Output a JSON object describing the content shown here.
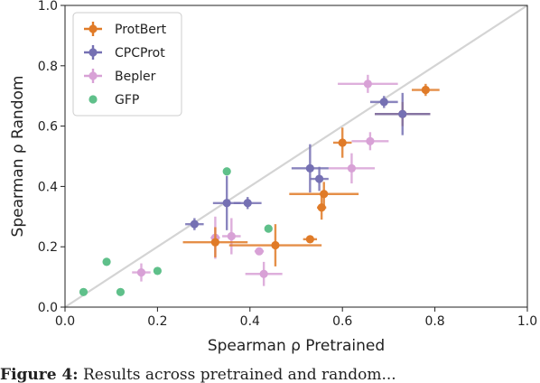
{
  "chart_data": {
    "type": "scatter",
    "xlabel": "Spearman ρ Pretrained",
    "ylabel": "Spearman ρ Random",
    "xlim": [
      0.0,
      1.0
    ],
    "ylim": [
      0.0,
      1.0
    ],
    "xticks": [
      0.0,
      0.2,
      0.4,
      0.6,
      0.8,
      1.0
    ],
    "yticks": [
      0.0,
      0.2,
      0.4,
      0.6,
      0.8,
      1.0
    ],
    "tick_format": "0.0",
    "grid": false,
    "diagonal_reference_line": true,
    "legend_position": "upper-left",
    "series": [
      {
        "name": "ProtBert",
        "color": "#e07b28",
        "marker": "circle-with-errorbars",
        "points": [
          {
            "x": 0.78,
            "y": 0.72,
            "xerr": 0.03,
            "yerr": 0.02
          },
          {
            "x": 0.73,
            "y": 0.64,
            "xerr": 0.06,
            "yerr": 0.04
          },
          {
            "x": 0.6,
            "y": 0.545,
            "xerr": 0.02,
            "yerr": 0.05
          },
          {
            "x": 0.56,
            "y": 0.375,
            "xerr": 0.075,
            "yerr": 0.04
          },
          {
            "x": 0.555,
            "y": 0.33,
            "xerr": 0.01,
            "yerr": 0.04
          },
          {
            "x": 0.53,
            "y": 0.225,
            "xerr": 0.015,
            "yerr": 0.01
          },
          {
            "x": 0.455,
            "y": 0.205,
            "xerr": 0.1,
            "yerr": 0.07
          },
          {
            "x": 0.325,
            "y": 0.215,
            "xerr": 0.07,
            "yerr": 0.05
          }
        ]
      },
      {
        "name": "CPCProt",
        "color": "#7570b3",
        "marker": "circle-with-errorbars",
        "points": [
          {
            "x": 0.73,
            "y": 0.64,
            "xerr": 0.06,
            "yerr": 0.07
          },
          {
            "x": 0.69,
            "y": 0.68,
            "xerr": 0.03,
            "yerr": 0.02
          },
          {
            "x": 0.53,
            "y": 0.46,
            "xerr": 0.04,
            "yerr": 0.08
          },
          {
            "x": 0.55,
            "y": 0.425,
            "xerr": 0.02,
            "yerr": 0.04
          },
          {
            "x": 0.35,
            "y": 0.345,
            "xerr": 0.03,
            "yerr": 0.09
          },
          {
            "x": 0.395,
            "y": 0.345,
            "xerr": 0.03,
            "yerr": 0.02
          },
          {
            "x": 0.28,
            "y": 0.275,
            "xerr": 0.02,
            "yerr": 0.02
          }
        ]
      },
      {
        "name": "Bepler",
        "color": "#d8a1d6",
        "marker": "circle-with-errorbars",
        "points": [
          {
            "x": 0.655,
            "y": 0.74,
            "xerr": 0.065,
            "yerr": 0.03
          },
          {
            "x": 0.66,
            "y": 0.55,
            "xerr": 0.04,
            "yerr": 0.03
          },
          {
            "x": 0.62,
            "y": 0.46,
            "xerr": 0.05,
            "yerr": 0.05
          },
          {
            "x": 0.36,
            "y": 0.235,
            "xerr": 0.02,
            "yerr": 0.06
          },
          {
            "x": 0.325,
            "y": 0.23,
            "xerr": 0.01,
            "yerr": 0.07
          },
          {
            "x": 0.42,
            "y": 0.185,
            "xerr": 0.01,
            "yerr": 0.01
          },
          {
            "x": 0.43,
            "y": 0.11,
            "xerr": 0.04,
            "yerr": 0.04
          },
          {
            "x": 0.165,
            "y": 0.115,
            "xerr": 0.02,
            "yerr": 0.03
          }
        ]
      },
      {
        "name": "GFP",
        "color": "#5fc08a",
        "marker": "circle",
        "points": [
          {
            "x": 0.35,
            "y": 0.45
          },
          {
            "x": 0.44,
            "y": 0.26
          },
          {
            "x": 0.09,
            "y": 0.15
          },
          {
            "x": 0.2,
            "y": 0.12
          },
          {
            "x": 0.12,
            "y": 0.05
          },
          {
            "x": 0.04,
            "y": 0.05
          }
        ]
      }
    ]
  },
  "caption_partial": {
    "label": "Figure 4:",
    "text": "Results across pretrained and random..."
  }
}
